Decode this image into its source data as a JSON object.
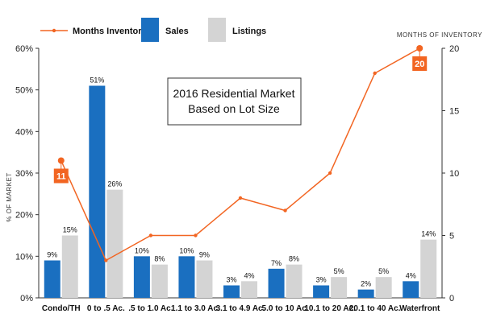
{
  "chart_data": {
    "type": "bar",
    "title_lines": [
      "2016 Residential Market",
      "Based on Lot Size"
    ],
    "categories": [
      "Condo/TH",
      "0 to .5 Ac.",
      ".5 to 1.0 Ac.",
      "1.1 to 3.0 Ac.",
      "3.1 to 4.9 Ac.",
      "5.0 to 10 Ac.",
      "10.1 to 20 Ac.",
      "20.1 to 40 Ac.",
      "Waterfront"
    ],
    "series": [
      {
        "name": "Sales",
        "values": [
          9,
          51,
          10,
          10,
          3,
          7,
          3,
          2,
          4
        ],
        "labels": [
          "9%",
          "51%",
          "10%",
          "10%",
          "3%",
          "7%",
          "3%",
          "2%",
          "4%"
        ],
        "color": "#1a6fc0"
      },
      {
        "name": "Listings",
        "values": [
          15,
          26,
          8,
          9,
          4,
          8,
          5,
          5,
          14
        ],
        "labels": [
          "15%",
          "26%",
          "8%",
          "9%",
          "4%",
          "8%",
          "5%",
          "5%",
          "14%"
        ],
        "color": "#d4d4d4"
      }
    ],
    "line_series": {
      "name": "Months Inventory",
      "values": [
        11,
        3,
        5,
        5,
        8,
        7,
        10,
        18,
        20
      ],
      "color": "#f26522"
    },
    "ylabel_left": "% OF MARKET",
    "ylabel_right": "MONTHS OF INVENTORY",
    "ylim_left": [
      0,
      60
    ],
    "ylim_right": [
      0,
      20
    ],
    "left_ticks": [
      0,
      10,
      20,
      30,
      40,
      50,
      60
    ],
    "left_tick_labels": [
      "0%",
      "10%",
      "20%",
      "30%",
      "40%",
      "50%",
      "60%"
    ],
    "right_ticks": [
      0,
      5,
      10,
      15,
      20
    ],
    "right_tick_labels": [
      "0",
      "5",
      "10",
      "15",
      "20"
    ],
    "callouts": [
      {
        "index": 0,
        "label": "11"
      },
      {
        "index": 8,
        "label": "20"
      }
    ],
    "legend_position": "top",
    "grid": false
  }
}
